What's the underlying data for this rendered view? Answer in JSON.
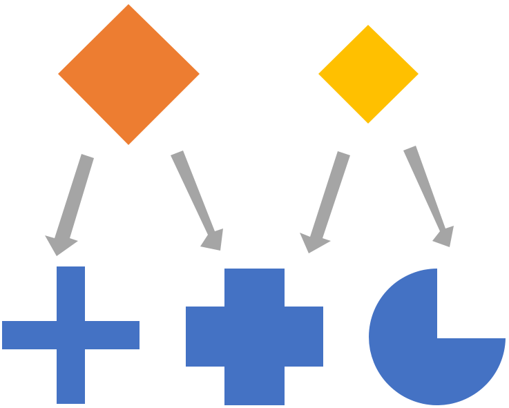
{
  "diagram": {
    "description_free": true,
    "shapes": {
      "diamond_large": {
        "kind": "diamond",
        "color": "#ED7D31"
      },
      "diamond_small": {
        "kind": "diamond",
        "color": "#FFC000"
      },
      "thin_cross": {
        "kind": "cross-thin",
        "color": "#4472C4"
      },
      "thick_cross": {
        "kind": "cross-thick",
        "color": "#4472C4"
      },
      "pie_shape": {
        "kind": "pie-three-quarter",
        "color": "#4472C4"
      }
    },
    "arrows": {
      "color": "#A5A5A5",
      "links": [
        {
          "from": "diamond_large",
          "to": "thin_cross"
        },
        {
          "from": "diamond_large",
          "to": "thick_cross"
        },
        {
          "from": "diamond_small",
          "to": "thick_cross"
        },
        {
          "from": "diamond_small",
          "to": "pie_shape"
        }
      ]
    }
  }
}
